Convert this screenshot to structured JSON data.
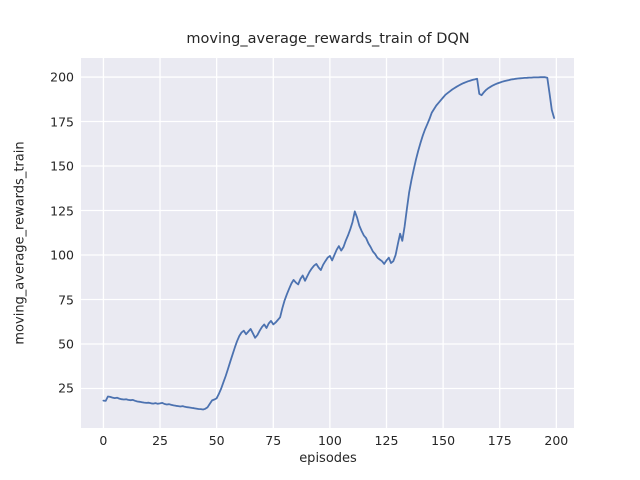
{
  "figure": {
    "title": "moving_average_rewards_train of DQN",
    "xlabel": "episodes",
    "ylabel": "moving_average_rewards_train"
  },
  "chart_data": {
    "type": "line",
    "title": "moving_average_rewards_train of DQN",
    "xlabel": "episodes",
    "ylabel": "moving_average_rewards_train",
    "x_ticks": [
      0,
      25,
      50,
      75,
      100,
      125,
      150,
      175,
      200
    ],
    "y_ticks": [
      25,
      50,
      75,
      100,
      125,
      150,
      175,
      200
    ],
    "xlim": [
      -9.9,
      207.8
    ],
    "ylim": [
      2.8,
      210.7
    ],
    "grid": true,
    "legend": "none",
    "colors": {
      "line": "#4c72b0",
      "axes_background": "#eaeaf2",
      "gridline": "#ffffff",
      "text": "#262626",
      "figure_background": "#ffffff"
    },
    "series": [
      {
        "name": "moving_average_rewards_train",
        "x_mode": "index",
        "values": [
          18.2,
          18.0,
          20.5,
          20.3,
          19.9,
          19.6,
          19.8,
          19.3,
          19.0,
          18.8,
          18.9,
          18.6,
          18.4,
          18.6,
          18.1,
          17.7,
          17.5,
          17.3,
          17.1,
          16.9,
          17.0,
          16.7,
          16.5,
          16.8,
          16.4,
          16.6,
          16.9,
          16.3,
          16.0,
          16.2,
          15.8,
          15.5,
          15.3,
          15.1,
          14.9,
          15.1,
          14.7,
          14.5,
          14.3,
          14.1,
          13.9,
          13.7,
          13.5,
          13.4,
          13.2,
          13.6,
          14.5,
          16.5,
          18.3,
          18.8,
          19.5,
          22.0,
          25.0,
          28.5,
          32.0,
          36.0,
          40.0,
          44.0,
          48.0,
          51.5,
          54.5,
          56.5,
          57.5,
          55.5,
          57.0,
          58.5,
          56.0,
          53.5,
          55.0,
          57.5,
          59.5,
          61.0,
          59.0,
          61.5,
          63.0,
          61.0,
          62.0,
          63.5,
          65.0,
          70.0,
          74.5,
          78.0,
          81.0,
          84.0,
          86.0,
          84.5,
          83.5,
          86.5,
          88.5,
          85.5,
          88.0,
          90.5,
          92.5,
          94.0,
          95.0,
          93.0,
          91.5,
          94.5,
          96.5,
          98.5,
          99.5,
          97.0,
          100.0,
          103.0,
          105.0,
          102.5,
          104.5,
          108.0,
          111.0,
          114.5,
          118.5,
          124.5,
          121.0,
          116.5,
          113.5,
          111.0,
          109.5,
          106.5,
          104.5,
          102.0,
          100.5,
          98.5,
          97.5,
          96.5,
          95.0,
          97.0,
          98.5,
          95.5,
          96.5,
          100.0,
          106.0,
          112.0,
          108.0,
          116.0,
          126.0,
          135.0,
          142.0,
          148.0,
          153.5,
          158.5,
          163.0,
          167.0,
          170.5,
          173.5,
          176.5,
          180.0,
          182.0,
          184.0,
          185.5,
          187.0,
          188.5,
          190.0,
          191.0,
          192.0,
          193.0,
          193.8,
          194.6,
          195.3,
          196.0,
          196.6,
          197.1,
          197.6,
          198.0,
          198.4,
          198.7,
          199.0,
          190.5,
          189.8,
          191.5,
          192.8,
          193.8,
          194.6,
          195.3,
          195.9,
          196.4,
          196.9,
          197.3,
          197.7,
          198.0,
          198.3,
          198.6,
          198.8,
          199.0,
          199.2,
          199.3,
          199.4,
          199.5,
          199.6,
          199.7,
          199.7,
          199.8,
          199.8,
          199.8,
          199.9,
          199.9,
          199.9,
          199.6,
          191.0,
          181.5,
          177.0
        ]
      }
    ]
  }
}
